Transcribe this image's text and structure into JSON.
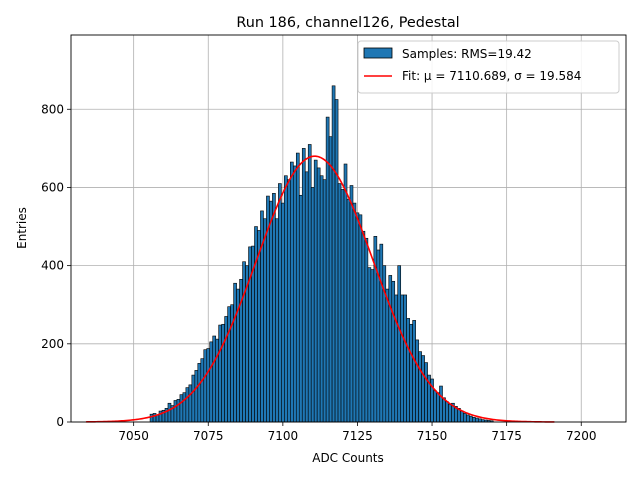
{
  "chart_data": {
    "type": "bar",
    "title": "Run 186, channel126, Pedestal",
    "xlabel": "ADC Counts",
    "ylabel": "Entries",
    "xlim": [
      7029,
      7215
    ],
    "ylim": [
      0,
      990
    ],
    "xticks": [
      7050,
      7075,
      7100,
      7125,
      7150,
      7175,
      7200
    ],
    "yticks": [
      0,
      200,
      400,
      600,
      800
    ],
    "grid": true,
    "legend_position": "top-right",
    "bar_color": "#1f77b4",
    "bar_edge_color": "#000000",
    "fit_color": "#ff0000",
    "series": [
      {
        "name": "Samples: RMS=19.42",
        "kind": "histogram",
        "bin_width": 1,
        "x": [
          7056,
          7057,
          7058,
          7059,
          7060,
          7061,
          7062,
          7063,
          7064,
          7065,
          7066,
          7067,
          7068,
          7069,
          7070,
          7071,
          7072,
          7073,
          7074,
          7075,
          7076,
          7077,
          7078,
          7079,
          7080,
          7081,
          7082,
          7083,
          7084,
          7085,
          7086,
          7087,
          7088,
          7089,
          7090,
          7091,
          7092,
          7093,
          7094,
          7095,
          7096,
          7097,
          7098,
          7099,
          7100,
          7101,
          7102,
          7103,
          7104,
          7105,
          7106,
          7107,
          7108,
          7109,
          7110,
          7111,
          7112,
          7113,
          7114,
          7115,
          7116,
          7117,
          7118,
          7119,
          7120,
          7121,
          7122,
          7123,
          7124,
          7125,
          7126,
          7127,
          7128,
          7129,
          7130,
          7131,
          7132,
          7133,
          7134,
          7135,
          7136,
          7137,
          7138,
          7139,
          7140,
          7141,
          7142,
          7143,
          7144,
          7145,
          7146,
          7147,
          7148,
          7149,
          7150,
          7151,
          7152,
          7153,
          7154,
          7155,
          7156,
          7157,
          7158,
          7159,
          7160,
          7161,
          7162,
          7163,
          7164,
          7165,
          7166,
          7167,
          7168,
          7169,
          7170
        ],
        "values": [
          20,
          22,
          18,
          28,
          30,
          35,
          48,
          42,
          55,
          58,
          70,
          75,
          88,
          95,
          120,
          132,
          150,
          162,
          185,
          188,
          205,
          220,
          212,
          248,
          250,
          270,
          295,
          300,
          355,
          340,
          365,
          410,
          400,
          448,
          450,
          500,
          490,
          540,
          520,
          578,
          565,
          585,
          520,
          610,
          560,
          630,
          620,
          665,
          655,
          688,
          580,
          700,
          640,
          710,
          600,
          670,
          650,
          630,
          620,
          780,
          730,
          860,
          825,
          610,
          595,
          660,
          570,
          605,
          560,
          535,
          530,
          488,
          470,
          395,
          390,
          475,
          440,
          455,
          400,
          340,
          375,
          360,
          325,
          400,
          325,
          325,
          265,
          250,
          260,
          210,
          180,
          170,
          152,
          120,
          110,
          80,
          75,
          92,
          62,
          52,
          45,
          48,
          40,
          35,
          28,
          22,
          18,
          15,
          12,
          10,
          8,
          6,
          5,
          4,
          3
        ]
      },
      {
        "name": "Fit: μ = 7110.689, σ = 19.584",
        "kind": "gaussian-fit",
        "mu": 7110.689,
        "sigma": 19.584,
        "amplitude": 680,
        "range": [
          7034,
          7191
        ]
      }
    ]
  }
}
